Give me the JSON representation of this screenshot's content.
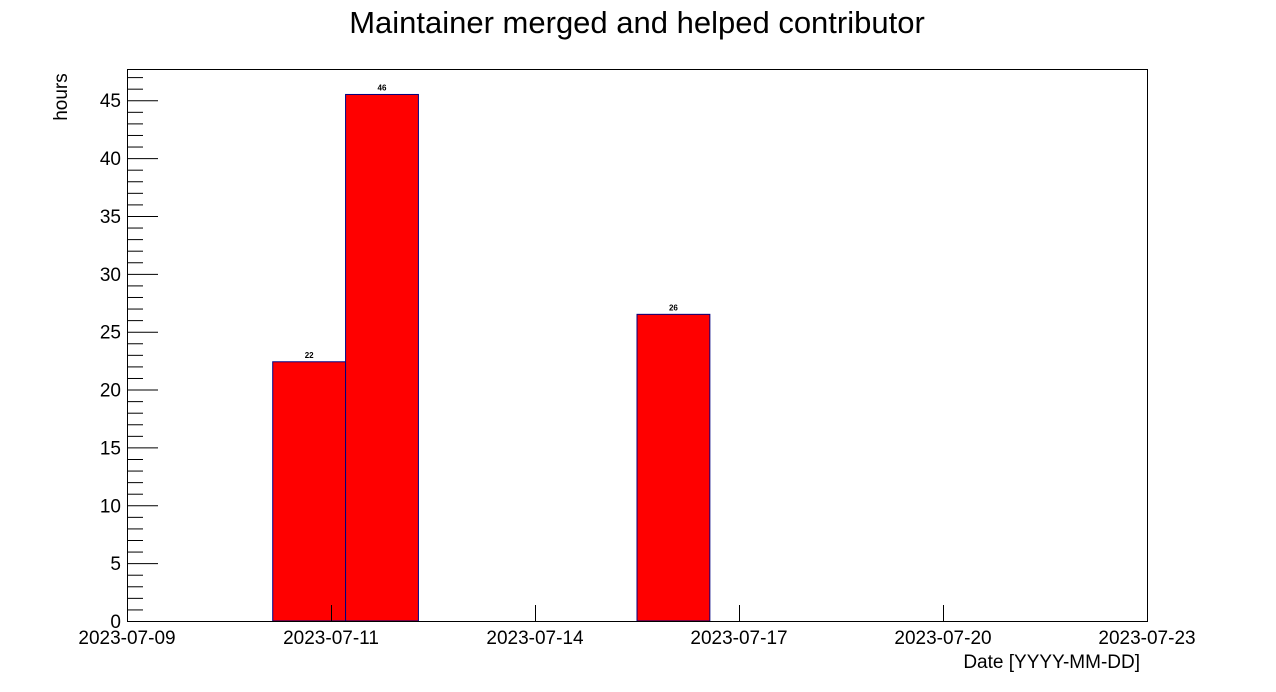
{
  "chart_data": {
    "type": "bar",
    "title": "Maintainer merged and helped contributor",
    "xlabel": "Date [YYYY-MM-DD]",
    "ylabel": "hours",
    "x_tick_labels": [
      "2023-07-09",
      "2023-07-11",
      "2023-07-14",
      "2023-07-17",
      "2023-07-20",
      "2023-07-23"
    ],
    "y_ticks": [
      0,
      5,
      10,
      15,
      20,
      25,
      30,
      35,
      40,
      45
    ],
    "ylim": [
      0,
      47.7
    ],
    "bars": [
      {
        "x_start": "2023-07-11",
        "x_end": "2023-07-12",
        "value": 22.4,
        "label": "22"
      },
      {
        "x_start": "2023-07-12",
        "x_end": "2023-07-13",
        "value": 45.5,
        "label": "46"
      },
      {
        "x_start": "2023-07-16",
        "x_end": "2023-07-17",
        "value": 26.5,
        "label": "26"
      }
    ],
    "grid": false,
    "bar_color": "#ff0000",
    "bar_edge_color": "#000080"
  }
}
